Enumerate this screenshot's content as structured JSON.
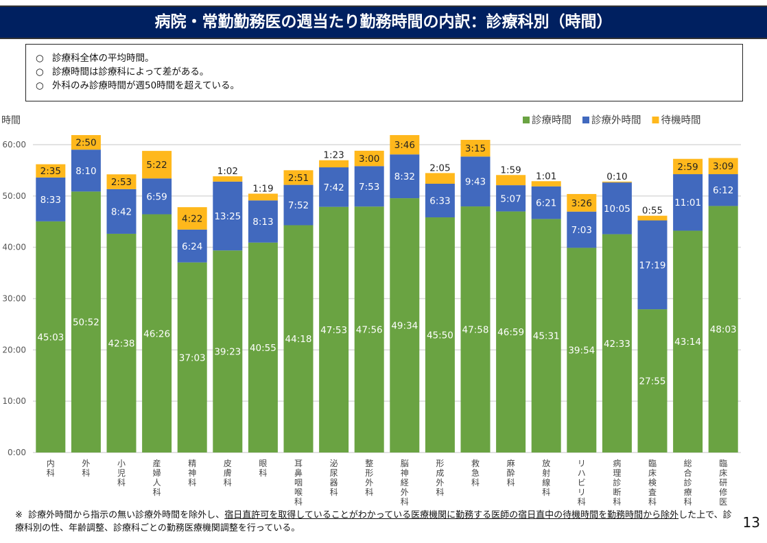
{
  "title": "病院・常勤勤務医の週当たり勤務時間の内訳：診療科別（時間）",
  "notes": [
    "診療科全体の平均時間。",
    "診療時間は診療科によって差がある。",
    "外科のみ診療時間が週50時間を超えている。"
  ],
  "note_bullet": "○",
  "footnote": {
    "mark": "※",
    "pre": "診療外時間から指示の無い診療外時間を除外し、",
    "underlined": "宿日直許可を取得していることがわかっている医療機関に勤務する医師の宿日直中の待機時間を勤務時間から除外",
    "post": "した上で、診療科別の性、年齢調整、診療科ごとの勤務医療機関調整を行っている。"
  },
  "page_number": "13",
  "chart_data": {
    "type": "bar",
    "stacked": true,
    "ylabel": "時間",
    "ylim": [
      "0:00",
      "60:00"
    ],
    "yticks": [
      "0:00",
      "10:00",
      "20:00",
      "30:00",
      "40:00",
      "50:00",
      "60:00"
    ],
    "grid": true,
    "legend_position": "top-right",
    "categories": [
      "内科",
      "外科",
      "小児科",
      "産婦人科",
      "精神科",
      "皮膚科",
      "眼科",
      "耳鼻咽喉科",
      "泌尿器科",
      "整形外科",
      "脳神経外科",
      "形成外科",
      "救急科",
      "麻酔科",
      "放射線科",
      "リハビリ科",
      "病理診断科",
      "臨床検査科",
      "総合診療科",
      "臨床研修医"
    ],
    "series": [
      {
        "name": "診療時間",
        "color": "#6AA342",
        "values": [
          "45:03",
          "50:52",
          "42:38",
          "46:26",
          "37:03",
          "39:23",
          "40:55",
          "44:18",
          "47:53",
          "47:56",
          "49:34",
          "45:50",
          "47:58",
          "46:59",
          "45:31",
          "39:54",
          "42:33",
          "27:55",
          "43:14",
          "48:03"
        ]
      },
      {
        "name": "診療外時間",
        "color": "#4169BE",
        "values": [
          "8:33",
          "8:10",
          "8:42",
          "6:59",
          "6:24",
          "13:25",
          "8:13",
          "7:52",
          "7:42",
          "7:53",
          "8:32",
          "6:33",
          "9:43",
          "5:07",
          "6:21",
          "7:03",
          "10:05",
          "17:19",
          "11:01",
          "6:12"
        ]
      },
      {
        "name": "待機時間",
        "color": "#FFB81C",
        "values": [
          "2:35",
          "2:50",
          "2:53",
          "5:22",
          "4:22",
          "1:02",
          "1:19",
          "2:51",
          "1:23",
          "3:00",
          "3:46",
          "2:05",
          "3:15",
          "1:59",
          "1:01",
          "3:26",
          "0:10",
          "0:55",
          "2:59",
          "3:09"
        ]
      }
    ]
  }
}
